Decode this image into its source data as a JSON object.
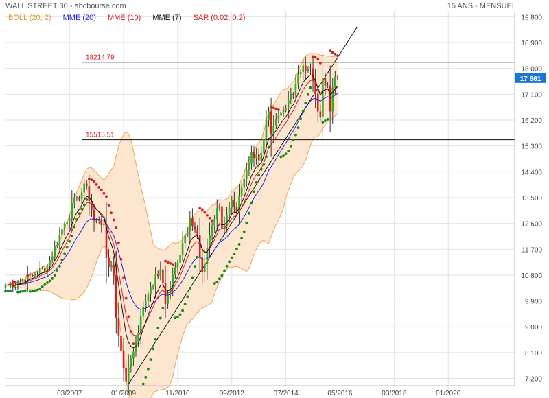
{
  "header": {
    "title": "WALL STREET 30 - abcbourse.com",
    "period": "15 ANS - MENSUEL"
  },
  "legend": [
    {
      "label": "BOLL (20, 2)",
      "color": "#e8962d"
    },
    {
      "label": "MME (20)",
      "color": "#1f1fe0"
    },
    {
      "label": "MME (10)",
      "color": "#d42020"
    },
    {
      "label": "MME (7)",
      "color": "#111111"
    },
    {
      "label": "SAR (0.02, 0.2)",
      "color": "#d42020"
    }
  ],
  "colors": {
    "up": "#2fae1f",
    "down": "#d42020",
    "sar_bull": "#138a13",
    "sar_bear": "#d42020",
    "boll_fill": "#fde6cf",
    "boll_line": "#f0a550",
    "grid": "#e2e2e2",
    "last_bg": "#1976d2",
    "trendline": "#111111",
    "level_line": "#111111",
    "level_text": "#d42020"
  },
  "chart_data": {
    "type": "candlestick",
    "title": "WALL STREET 30",
    "y_range": [
      6950,
      20000
    ],
    "x_range": [
      "2005-01",
      "2022-04"
    ],
    "y_ticks": [
      "7 200",
      "8 100",
      "9 000",
      "9 900",
      "10 800",
      "11 700",
      "12 600",
      "13 500",
      "14 400",
      "15 300",
      "16 200",
      "17 100",
      "18 000",
      "18 900",
      "19 800"
    ],
    "x_ticks": [
      "03/2007",
      "01/2009",
      "11/2010",
      "09/2012",
      "07/2014",
      "05/2016",
      "03/2018",
      "01/2020"
    ],
    "last_value": "17 661",
    "horizontal_levels": [
      {
        "label": "18214.79",
        "value": 18214.79
      },
      {
        "label": "15515.51",
        "value": 15515.51
      }
    ],
    "trendline": {
      "from": [
        "2009-03",
        7000
      ],
      "to": [
        "2016-12",
        19450
      ]
    },
    "anchors": [
      [
        "2005-01",
        10450
      ],
      [
        "2005-06",
        10550
      ],
      [
        "2006-01",
        10850
      ],
      [
        "2006-06",
        11100
      ],
      [
        "2006-12",
        12400
      ],
      [
        "2007-06",
        13500
      ],
      [
        "2007-10",
        13900
      ],
      [
        "2008-01",
        12700
      ],
      [
        "2008-05",
        12600
      ],
      [
        "2008-06",
        11400
      ],
      [
        "2008-09",
        10800
      ],
      [
        "2008-10",
        9300
      ],
      [
        "2008-11",
        8700
      ],
      [
        "2009-02",
        7100
      ],
      [
        "2009-03",
        7600
      ],
      [
        "2009-06",
        8450
      ],
      [
        "2009-09",
        9700
      ],
      [
        "2009-12",
        10400
      ],
      [
        "2010-04",
        11000
      ],
      [
        "2010-06",
        9800
      ],
      [
        "2010-09",
        10800
      ],
      [
        "2010-12",
        11500
      ],
      [
        "2011-04",
        12800
      ],
      [
        "2011-07",
        12200
      ],
      [
        "2011-09",
        10900
      ],
      [
        "2011-12",
        12200
      ],
      [
        "2012-04",
        13200
      ],
      [
        "2012-05",
        12400
      ],
      [
        "2012-09",
        13400
      ],
      [
        "2012-11",
        13000
      ],
      [
        "2013-01",
        13850
      ],
      [
        "2013-05",
        15100
      ],
      [
        "2013-08",
        14800
      ],
      [
        "2013-12",
        16500
      ],
      [
        "2014-01",
        15700
      ],
      [
        "2014-07",
        16600
      ],
      [
        "2014-12",
        17800
      ],
      [
        "2015-02",
        18100
      ],
      [
        "2015-05",
        18000
      ],
      [
        "2015-08",
        16500
      ],
      [
        "2015-09",
        16300
      ],
      [
        "2015-10",
        17650
      ],
      [
        "2015-12",
        17400
      ],
      [
        "2016-01",
        16500
      ],
      [
        "2016-03",
        17700
      ],
      [
        "2016-04",
        17700
      ]
    ]
  }
}
